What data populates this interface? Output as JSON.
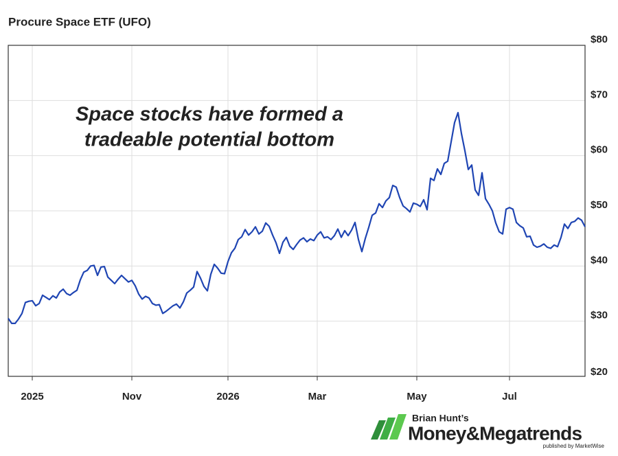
{
  "chart_data": {
    "type": "line",
    "title": "Procure Space ETF (UFO)",
    "annotation": [
      "Space stocks have formed a",
      "tradeable potential bottom"
    ],
    "categories": [
      null,
      null,
      null,
      null,
      null,
      null,
      null,
      "2025",
      null,
      null,
      null,
      null,
      null,
      null,
      null,
      null,
      null,
      null,
      null,
      null,
      null,
      null,
      null,
      null,
      null,
      null,
      null,
      null,
      null,
      null,
      null,
      null,
      null,
      null,
      null,
      null,
      "Nov",
      null,
      null,
      null,
      null,
      null,
      null,
      null,
      null,
      null,
      null,
      null,
      null,
      null,
      null,
      null,
      null,
      null,
      null,
      null,
      null,
      null,
      null,
      null,
      null,
      null,
      null,
      null,
      "2026",
      null,
      null,
      null,
      null,
      null,
      null,
      null,
      null,
      null,
      null,
      null,
      null,
      null,
      null,
      null,
      null,
      null,
      null,
      null,
      null,
      null,
      null,
      null,
      null,
      null,
      "Mar",
      null,
      null,
      null,
      null,
      null,
      null,
      null,
      null,
      null,
      null,
      null,
      null,
      null,
      null,
      null,
      null,
      null,
      null,
      null,
      null,
      null,
      null,
      null,
      null,
      null,
      null,
      null,
      null,
      "May",
      null,
      null,
      null,
      null,
      null,
      null,
      null,
      null,
      null,
      null,
      null,
      null,
      null,
      null,
      null,
      null,
      null,
      null,
      null,
      null,
      null,
      null,
      null,
      null,
      null,
      null,
      "Jul",
      null,
      null,
      null,
      null,
      null,
      null,
      null,
      null,
      null,
      null,
      null,
      null,
      null,
      null,
      null,
      null,
      null,
      null,
      null,
      null,
      null,
      null
    ],
    "values": [
      30.5,
      29.6,
      29.6,
      30.4,
      31.4,
      33.4,
      33.6,
      33.7,
      32.8,
      33.2,
      34.7,
      34.3,
      33.9,
      34.6,
      34.2,
      35.3,
      35.8,
      35,
      34.7,
      35.2,
      35.6,
      37.5,
      38.9,
      39.2,
      40,
      40.1,
      38.3,
      39.8,
      39.9,
      38,
      37.4,
      36.8,
      37.6,
      38.3,
      37.7,
      37.1,
      37.4,
      36.4,
      34.9,
      34,
      34.5,
      34.2,
      33.2,
      32.9,
      33,
      31.4,
      31.8,
      32.3,
      32.8,
      33.1,
      32.4,
      33.5,
      35.1,
      35.6,
      36.2,
      39,
      37.8,
      36.3,
      35.5,
      38.5,
      40.3,
      39.6,
      38.7,
      38.6,
      40.8,
      42.4,
      43.2,
      44.8,
      45.3,
      46.6,
      45.6,
      46.2,
      47.1,
      45.8,
      46.3,
      47.8,
      47.2,
      45.6,
      44.2,
      42.3,
      44.3,
      45.2,
      43.6,
      43,
      43.9,
      44.7,
      45.1,
      44.4,
      44.9,
      44.6,
      45.6,
      46.2,
      45.1,
      45.3,
      44.8,
      45.5,
      46.7,
      45.2,
      46.4,
      45.5,
      46.5,
      47.9,
      44.8,
      42.6,
      45,
      47,
      49.2,
      49.6,
      51.3,
      50.6,
      51.8,
      52.4,
      54.6,
      54.3,
      52.4,
      50.9,
      50.4,
      49.8,
      51.4,
      51.2,
      50.8,
      52,
      50.2,
      55.9,
      55.5,
      57.6,
      56.6,
      58.6,
      59,
      62.5,
      66,
      67.8,
      64,
      60.9,
      57.5,
      58.3,
      53.8,
      52.8,
      56.9,
      52.2,
      51.2,
      50,
      47.8,
      46.2,
      45.8,
      50.3,
      50.6,
      50.3,
      47.9,
      47.3,
      46.9,
      45.3,
      45.4,
      43.8,
      43.4,
      43.6,
      44,
      43.4,
      43.2,
      43.8,
      43.5,
      45.2,
      47.6,
      46.8,
      47.9,
      48.1,
      48.7,
      48.3,
      47.1
    ],
    "color": "#1f45b3",
    "ylim": [
      20,
      80
    ],
    "yticks": [
      {
        "value": 20,
        "label": "$20"
      },
      {
        "value": 30,
        "label": "$30"
      },
      {
        "value": 40,
        "label": "$40"
      },
      {
        "value": 50,
        "label": "$50"
      },
      {
        "value": 60,
        "label": "$60"
      },
      {
        "value": 70,
        "label": "$70"
      },
      {
        "value": 80,
        "label": "$80"
      }
    ],
    "grid": true
  },
  "logo": {
    "top": "Brian Hunt’s",
    "name": "Money&Megatrends",
    "sub": "published by MarketWise"
  }
}
